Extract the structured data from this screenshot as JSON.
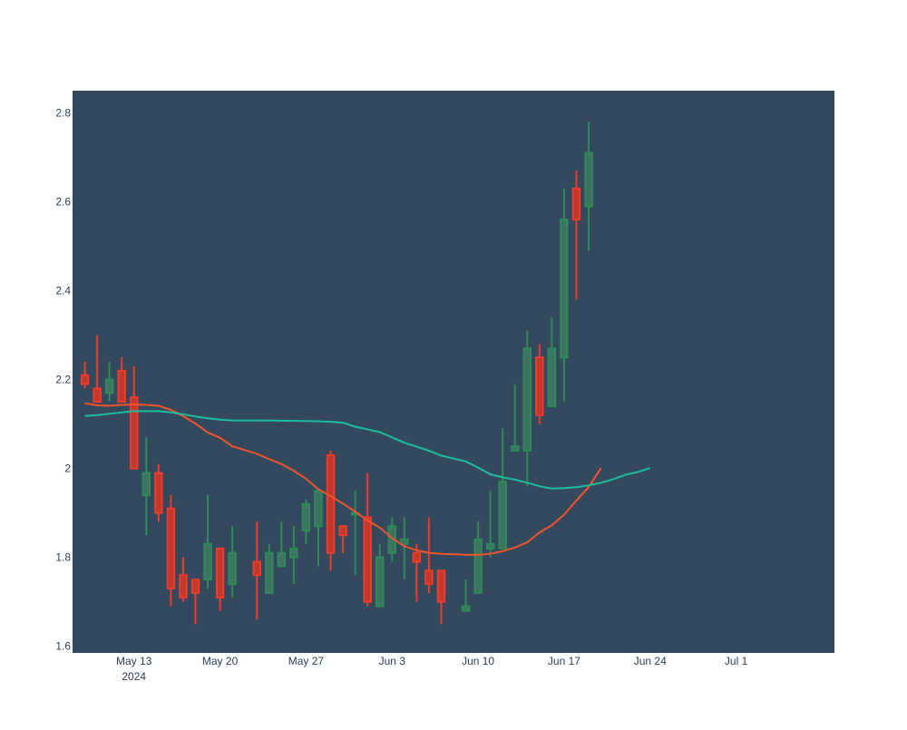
{
  "colors": {
    "plot_bg": "#34495e",
    "increasing": "#2e8b57",
    "increasing_fill": "#3d7360",
    "decreasing": "#ef3b2c",
    "decreasing_fill": "#c0392b",
    "ma_short": "#f2542d",
    "ma_long": "#1abc9c",
    "tick_text": "#2a3f5f"
  },
  "chart_data": {
    "type": "candlestick",
    "title": "",
    "xlabel": "",
    "ylabel": "",
    "ylim": [
      1.585,
      2.85
    ],
    "xlim": [
      "2024-05-08",
      "2024-07-09"
    ],
    "grid": false,
    "legend": "none",
    "yticks": [
      {
        "value": 1.6,
        "label": "1.6"
      },
      {
        "value": 1.8,
        "label": "1.8"
      },
      {
        "value": 2.0,
        "label": "2"
      },
      {
        "value": 2.2,
        "label": "2.2"
      },
      {
        "value": 2.4,
        "label": "2.4"
      },
      {
        "value": 2.6,
        "label": "2.6"
      },
      {
        "value": 2.8,
        "label": "2.8"
      }
    ],
    "xticks": [
      {
        "date": "2024-05-13",
        "label": "May 13",
        "sublabel": "2024"
      },
      {
        "date": "2024-05-20",
        "label": "May 20",
        "sublabel": ""
      },
      {
        "date": "2024-05-27",
        "label": "May 27",
        "sublabel": ""
      },
      {
        "date": "2024-06-03",
        "label": "Jun 3",
        "sublabel": ""
      },
      {
        "date": "2024-06-10",
        "label": "Jun 10",
        "sublabel": ""
      },
      {
        "date": "2024-06-17",
        "label": "Jun 17",
        "sublabel": ""
      },
      {
        "date": "2024-06-24",
        "label": "Jun 24",
        "sublabel": ""
      },
      {
        "date": "2024-07-01",
        "label": "Jul 1",
        "sublabel": ""
      }
    ],
    "candles": [
      {
        "date": "2024-05-09",
        "open": 2.21,
        "high": 2.24,
        "low": 2.18,
        "close": 2.19
      },
      {
        "date": "2024-05-10",
        "open": 2.18,
        "high": 2.3,
        "low": 2.15,
        "close": 2.15
      },
      {
        "date": "2024-05-11",
        "open": 2.17,
        "high": 2.24,
        "low": 2.15,
        "close": 2.2
      },
      {
        "date": "2024-05-12",
        "open": 2.22,
        "high": 2.25,
        "low": 2.15,
        "close": 2.15
      },
      {
        "date": "2024-05-13",
        "open": 2.16,
        "high": 2.23,
        "low": 2.0,
        "close": 2.0
      },
      {
        "date": "2024-05-14",
        "open": 1.94,
        "high": 2.07,
        "low": 1.85,
        "close": 1.99
      },
      {
        "date": "2024-05-15",
        "open": 1.99,
        "high": 2.01,
        "low": 1.88,
        "close": 1.9
      },
      {
        "date": "2024-05-16",
        "open": 1.91,
        "high": 1.94,
        "low": 1.69,
        "close": 1.73
      },
      {
        "date": "2024-05-17",
        "open": 1.76,
        "high": 1.8,
        "low": 1.7,
        "close": 1.71
      },
      {
        "date": "2024-05-18",
        "open": 1.75,
        "high": 1.75,
        "low": 1.65,
        "close": 1.72
      },
      {
        "date": "2024-05-19",
        "open": 1.75,
        "high": 1.94,
        "low": 1.73,
        "close": 1.83
      },
      {
        "date": "2024-05-20",
        "open": 1.82,
        "high": 1.82,
        "low": 1.68,
        "close": 1.71
      },
      {
        "date": "2024-05-21",
        "open": 1.74,
        "high": 1.87,
        "low": 1.71,
        "close": 1.81
      },
      {
        "date": "2024-05-23",
        "open": 1.79,
        "high": 1.88,
        "low": 1.66,
        "close": 1.76
      },
      {
        "date": "2024-05-24",
        "open": 1.72,
        "high": 1.83,
        "low": 1.72,
        "close": 1.81
      },
      {
        "date": "2024-05-25",
        "open": 1.78,
        "high": 1.88,
        "low": 1.78,
        "close": 1.81
      },
      {
        "date": "2024-05-26",
        "open": 1.8,
        "high": 1.87,
        "low": 1.74,
        "close": 1.82
      },
      {
        "date": "2024-05-27",
        "open": 1.86,
        "high": 1.93,
        "low": 1.83,
        "close": 1.92
      },
      {
        "date": "2024-05-28",
        "open": 1.87,
        "high": 1.95,
        "low": 1.78,
        "close": 1.95
      },
      {
        "date": "2024-05-29",
        "open": 2.03,
        "high": 2.04,
        "low": 1.77,
        "close": 1.81
      },
      {
        "date": "2024-05-30",
        "open": 1.87,
        "high": 1.87,
        "low": 1.81,
        "close": 1.85
      },
      {
        "date": "2024-05-31",
        "open": 1.9,
        "high": 1.95,
        "low": 1.76,
        "close": 1.9
      },
      {
        "date": "2024-06-01",
        "open": 1.89,
        "high": 1.99,
        "low": 1.69,
        "close": 1.7
      },
      {
        "date": "2024-06-02",
        "open": 1.69,
        "high": 1.83,
        "low": 1.69,
        "close": 1.8
      },
      {
        "date": "2024-06-03",
        "open": 1.81,
        "high": 1.89,
        "low": 1.79,
        "close": 1.87
      },
      {
        "date": "2024-06-04",
        "open": 1.83,
        "high": 1.89,
        "low": 1.75,
        "close": 1.84
      },
      {
        "date": "2024-06-05",
        "open": 1.81,
        "high": 1.83,
        "low": 1.7,
        "close": 1.79
      },
      {
        "date": "2024-06-06",
        "open": 1.77,
        "high": 1.89,
        "low": 1.72,
        "close": 1.74
      },
      {
        "date": "2024-06-07",
        "open": 1.77,
        "high": 1.77,
        "low": 1.65,
        "close": 1.7
      },
      {
        "date": "2024-06-09",
        "open": 1.68,
        "high": 1.75,
        "low": 1.68,
        "close": 1.69
      },
      {
        "date": "2024-06-10",
        "open": 1.72,
        "high": 1.88,
        "low": 1.72,
        "close": 1.84
      },
      {
        "date": "2024-06-11",
        "open": 1.82,
        "high": 1.95,
        "low": 1.8,
        "close": 1.83
      },
      {
        "date": "2024-06-12",
        "open": 1.82,
        "high": 2.09,
        "low": 1.82,
        "close": 1.97
      },
      {
        "date": "2024-06-13",
        "open": 2.04,
        "high": 2.19,
        "low": 2.04,
        "close": 2.05
      },
      {
        "date": "2024-06-14",
        "open": 2.04,
        "high": 2.31,
        "low": 1.96,
        "close": 2.27
      },
      {
        "date": "2024-06-15",
        "open": 2.25,
        "high": 2.28,
        "low": 2.1,
        "close": 2.12
      },
      {
        "date": "2024-06-16",
        "open": 2.14,
        "high": 2.34,
        "low": 2.14,
        "close": 2.27
      },
      {
        "date": "2024-06-17",
        "open": 2.25,
        "high": 2.63,
        "low": 2.15,
        "close": 2.56
      },
      {
        "date": "2024-06-18",
        "open": 2.63,
        "high": 2.67,
        "low": 2.38,
        "close": 2.56
      },
      {
        "date": "2024-06-19",
        "open": 2.59,
        "high": 2.78,
        "low": 2.49,
        "close": 2.71
      }
    ],
    "series": [
      {
        "color_key": "ma_short",
        "points": [
          [
            "2024-05-09",
            2.147
          ],
          [
            "2024-05-10",
            2.142
          ],
          [
            "2024-05-11",
            2.141
          ],
          [
            "2024-05-12",
            2.143
          ],
          [
            "2024-05-13",
            2.144
          ],
          [
            "2024-05-14",
            2.143
          ],
          [
            "2024-05-15",
            2.141
          ],
          [
            "2024-05-16",
            2.132
          ],
          [
            "2024-05-17",
            2.118
          ],
          [
            "2024-05-18",
            2.101
          ],
          [
            "2024-05-19",
            2.081
          ],
          [
            "2024-05-20",
            2.069
          ],
          [
            "2024-05-21",
            2.05
          ],
          [
            "2024-05-23",
            2.033
          ],
          [
            "2024-05-24",
            2.021
          ],
          [
            "2024-05-25",
            2.01
          ],
          [
            "2024-05-26",
            1.995
          ],
          [
            "2024-05-27",
            1.977
          ],
          [
            "2024-05-28",
            1.953
          ],
          [
            "2024-05-29",
            1.938
          ],
          [
            "2024-05-30",
            1.921
          ],
          [
            "2024-05-31",
            1.903
          ],
          [
            "2024-06-01",
            1.883
          ],
          [
            "2024-06-02",
            1.867
          ],
          [
            "2024-06-03",
            1.843
          ],
          [
            "2024-06-04",
            1.825
          ],
          [
            "2024-06-05",
            1.816
          ],
          [
            "2024-06-06",
            1.81
          ],
          [
            "2024-06-07",
            1.808
          ],
          [
            "2024-06-09",
            1.806
          ],
          [
            "2024-06-10",
            1.806
          ],
          [
            "2024-06-11",
            1.808
          ],
          [
            "2024-06-12",
            1.814
          ],
          [
            "2024-06-13",
            1.822
          ],
          [
            "2024-06-14",
            1.834
          ],
          [
            "2024-06-15",
            1.856
          ],
          [
            "2024-06-16",
            1.872
          ],
          [
            "2024-06-17",
            1.896
          ],
          [
            "2024-06-18",
            1.928
          ],
          [
            "2024-06-19",
            1.958
          ],
          [
            "2024-06-20",
            2.001
          ]
        ]
      },
      {
        "color_key": "ma_long",
        "points": [
          [
            "2024-05-09",
            2.118
          ],
          [
            "2024-05-10",
            2.12
          ],
          [
            "2024-05-11",
            2.123
          ],
          [
            "2024-05-12",
            2.126
          ],
          [
            "2024-05-13",
            2.129
          ],
          [
            "2024-05-14",
            2.129
          ],
          [
            "2024-05-15",
            2.129
          ],
          [
            "2024-05-16",
            2.126
          ],
          [
            "2024-05-17",
            2.122
          ],
          [
            "2024-05-18",
            2.117
          ],
          [
            "2024-05-19",
            2.113
          ],
          [
            "2024-05-20",
            2.11
          ],
          [
            "2024-05-21",
            2.108
          ],
          [
            "2024-05-24",
            2.108
          ],
          [
            "2024-05-27",
            2.107
          ],
          [
            "2024-05-28",
            2.106
          ],
          [
            "2024-05-29",
            2.105
          ],
          [
            "2024-05-30",
            2.103
          ],
          [
            "2024-05-31",
            2.094
          ],
          [
            "2024-06-02",
            2.082
          ],
          [
            "2024-06-03",
            2.07
          ],
          [
            "2024-06-04",
            2.058
          ],
          [
            "2024-06-05",
            2.049
          ],
          [
            "2024-06-06",
            2.04
          ],
          [
            "2024-06-07",
            2.029
          ],
          [
            "2024-06-09",
            2.016
          ],
          [
            "2024-06-10",
            2.002
          ],
          [
            "2024-06-11",
            1.987
          ],
          [
            "2024-06-12",
            1.98
          ],
          [
            "2024-06-13",
            1.975
          ],
          [
            "2024-06-14",
            1.968
          ],
          [
            "2024-06-15",
            1.96
          ],
          [
            "2024-06-16",
            1.955
          ],
          [
            "2024-06-17",
            1.956
          ],
          [
            "2024-06-18",
            1.958
          ],
          [
            "2024-06-19",
            1.962
          ],
          [
            "2024-06-20",
            1.968
          ],
          [
            "2024-06-21",
            1.976
          ],
          [
            "2024-06-22",
            1.986
          ],
          [
            "2024-06-23",
            1.992
          ],
          [
            "2024-06-24",
            2.001
          ]
        ]
      }
    ]
  }
}
